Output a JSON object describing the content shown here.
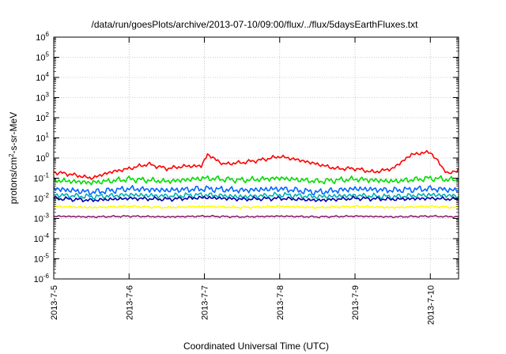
{
  "chart_data": {
    "type": "line",
    "title": "/data/run/goesPlots/archive/2013-07-10/09:00/flux/../flux/5daysEarthFluxes.txt",
    "xlabel": "Coordinated Universal Time (UTC)",
    "ylabel": {
      "prefix": "protons/cm",
      "sup": "2",
      "suffix": "-s-sr-MeV"
    },
    "yscale": "log",
    "ylim": [
      "1e-6",
      "1e6"
    ],
    "y_ticks": [
      {
        "base": "10",
        "exp": "6"
      },
      {
        "base": "10",
        "exp": "5"
      },
      {
        "base": "10",
        "exp": "4"
      },
      {
        "base": "10",
        "exp": "3"
      },
      {
        "base": "10",
        "exp": "2"
      },
      {
        "base": "10",
        "exp": "1"
      },
      {
        "base": "10",
        "exp": "0"
      },
      {
        "base": "10",
        "exp": "-1"
      },
      {
        "base": "10",
        "exp": "-2"
      },
      {
        "base": "10",
        "exp": "-3"
      },
      {
        "base": "10",
        "exp": "-4"
      },
      {
        "base": "10",
        "exp": "-5"
      },
      {
        "base": "10",
        "exp": "-6"
      }
    ],
    "x_ticks": [
      "2013-7-5",
      "2013-7-6",
      "2013-7-7",
      "2013-7-8",
      "2013-7-9",
      "2013-7-10"
    ],
    "xlim": [
      "2013-07-05 00:00",
      "2013-07-10 09:00"
    ],
    "grid": true,
    "series": [
      {
        "color": "#ff0000",
        "x": [
          "2013-07-05 00:00",
          "2013-07-05 06:00",
          "2013-07-05 12:00",
          "2013-07-05 18:00",
          "2013-07-06 00:00",
          "2013-07-06 06:00",
          "2013-07-06 12:00",
          "2013-07-06 18:00",
          "2013-07-06 23:00",
          "2013-07-07 01:00",
          "2013-07-07 06:00",
          "2013-07-07 12:00",
          "2013-07-07 18:00",
          "2013-07-08 00:00",
          "2013-07-08 06:00",
          "2013-07-08 12:00",
          "2013-07-08 18:00",
          "2013-07-09 00:00",
          "2013-07-09 06:00",
          "2013-07-09 12:00",
          "2013-07-09 18:00",
          "2013-07-10 00:00",
          "2013-07-10 03:00",
          "2013-07-10 06:00",
          "2013-07-10 09:00"
        ],
        "values": [
          0.2,
          0.15,
          0.1,
          0.2,
          0.3,
          0.5,
          0.3,
          0.4,
          0.4,
          1.5,
          0.5,
          0.6,
          0.8,
          1.2,
          0.8,
          0.5,
          0.3,
          0.3,
          0.2,
          0.3,
          1.5,
          2.0,
          0.5,
          0.15,
          0.3
        ]
      },
      {
        "color": "#00dd00",
        "x": [
          "2013-07-05 00:00",
          "2013-07-05 12:00",
          "2013-07-06 00:00",
          "2013-07-06 12:00",
          "2013-07-07 00:00",
          "2013-07-07 12:00",
          "2013-07-08 00:00",
          "2013-07-08 12:00",
          "2013-07-09 00:00",
          "2013-07-09 12:00",
          "2013-07-10 00:00",
          "2013-07-10 09:00"
        ],
        "values": [
          0.08,
          0.06,
          0.09,
          0.07,
          0.1,
          0.08,
          0.1,
          0.07,
          0.09,
          0.07,
          0.1,
          0.08
        ]
      },
      {
        "color": "#0066ff",
        "x": [
          "2013-07-05 00:00",
          "2013-07-05 12:00",
          "2013-07-06 00:00",
          "2013-07-06 12:00",
          "2013-07-07 00:00",
          "2013-07-07 12:00",
          "2013-07-08 00:00",
          "2013-07-08 12:00",
          "2013-07-09 00:00",
          "2013-07-09 12:00",
          "2013-07-10 00:00",
          "2013-07-10 09:00"
        ],
        "values": [
          0.03,
          0.02,
          0.03,
          0.025,
          0.03,
          0.025,
          0.03,
          0.02,
          0.03,
          0.025,
          0.03,
          0.025
        ]
      },
      {
        "color": "#00b0b0",
        "x": [
          "2013-07-05 00:00",
          "2013-07-05 12:00",
          "2013-07-06 00:00",
          "2013-07-06 12:00",
          "2013-07-07 00:00",
          "2013-07-07 12:00",
          "2013-07-08 00:00",
          "2013-07-08 12:00",
          "2013-07-09 00:00",
          "2013-07-09 12:00",
          "2013-07-10 00:00",
          "2013-07-10 09:00"
        ],
        "values": [
          0.015,
          0.012,
          0.015,
          0.013,
          0.015,
          0.012,
          0.015,
          0.012,
          0.014,
          0.012,
          0.015,
          0.013
        ]
      },
      {
        "color": "#0000aa",
        "x": [
          "2013-07-05 00:00",
          "2013-07-05 12:00",
          "2013-07-06 00:00",
          "2013-07-06 12:00",
          "2013-07-07 00:00",
          "2013-07-07 12:00",
          "2013-07-08 00:00",
          "2013-07-08 12:00",
          "2013-07-09 00:00",
          "2013-07-09 12:00",
          "2013-07-10 00:00",
          "2013-07-10 09:00"
        ],
        "values": [
          0.01,
          0.008,
          0.01,
          0.009,
          0.011,
          0.009,
          0.01,
          0.008,
          0.01,
          0.009,
          0.01,
          0.009
        ]
      },
      {
        "color": "#ffff00",
        "x": [
          "2013-07-05 00:00",
          "2013-07-05 12:00",
          "2013-07-06 00:00",
          "2013-07-06 12:00",
          "2013-07-07 00:00",
          "2013-07-07 12:00",
          "2013-07-08 00:00",
          "2013-07-08 12:00",
          "2013-07-09 00:00",
          "2013-07-09 12:00",
          "2013-07-10 00:00",
          "2013-07-10 09:00"
        ],
        "values": [
          0.004,
          0.0035,
          0.004,
          0.0035,
          0.004,
          0.0035,
          0.004,
          0.0035,
          0.004,
          0.0035,
          0.004,
          0.0035
        ]
      },
      {
        "color": "#8b2070",
        "x": [
          "2013-07-05 00:00",
          "2013-07-05 12:00",
          "2013-07-06 00:00",
          "2013-07-06 12:00",
          "2013-07-07 00:00",
          "2013-07-07 12:00",
          "2013-07-08 00:00",
          "2013-07-08 12:00",
          "2013-07-09 00:00",
          "2013-07-09 12:00",
          "2013-07-10 00:00",
          "2013-07-10 09:00"
        ],
        "values": [
          0.0013,
          0.0012,
          0.0013,
          0.0012,
          0.0013,
          0.0012,
          0.0013,
          0.0012,
          0.0013,
          0.0012,
          0.0013,
          0.0012
        ]
      }
    ]
  }
}
